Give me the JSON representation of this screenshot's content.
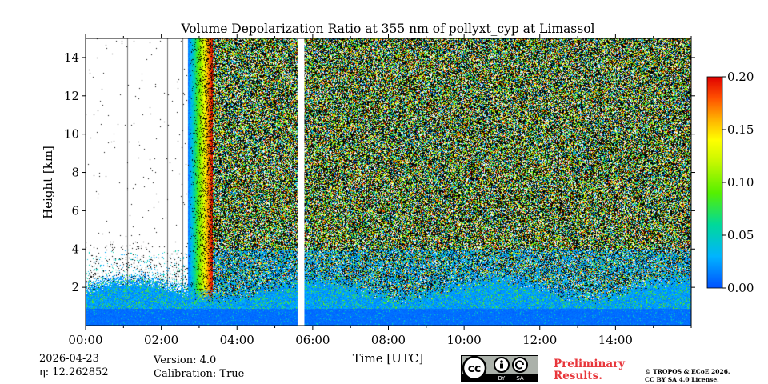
{
  "chart_data": {
    "type": "heatmap",
    "title": "Volume Depolarization Ratio at 355 nm of pollyxt_cyp at Limassol",
    "xlabel": "Time [UTC]",
    "ylabel": "Height [km]",
    "xlim": [
      0,
      16
    ],
    "ylim": [
      0,
      15
    ],
    "x_ticks": [
      0,
      2,
      4,
      6,
      8,
      10,
      12,
      14
    ],
    "x_tick_labels": [
      "00:00",
      "02:00",
      "04:00",
      "06:00",
      "08:00",
      "10:00",
      "12:00",
      "14:00"
    ],
    "y_ticks": [
      2,
      4,
      6,
      8,
      10,
      12,
      14
    ],
    "y_tick_labels": [
      "2",
      "4",
      "6",
      "8",
      "10",
      "12",
      "14"
    ],
    "colorbar": {
      "range": [
        0.0,
        0.2
      ],
      "ticks": [
        0.0,
        0.05,
        0.1,
        0.15,
        0.2
      ],
      "tick_labels": [
        "0.00",
        "0.05",
        "0.10",
        "0.15",
        "0.20"
      ],
      "colormap": [
        "#0050ff",
        "#00b4ff",
        "#00d99a",
        "#55f000",
        "#c8f800",
        "#ffff00",
        "#ffb000",
        "#ff5000",
        "#e00000"
      ]
    },
    "data_gap_hours": [
      5.6,
      5.78
    ],
    "regions": [
      {
        "name": "boundary layer",
        "time_range": [
          0,
          16
        ],
        "height_range": [
          0,
          2.5
        ],
        "value_approx": 0.02
      },
      {
        "name": "pre-dawn upper (sparse signal)",
        "time_range": [
          0,
          2.7
        ],
        "height_range": [
          3,
          15
        ],
        "value_approx": 0.0
      },
      {
        "name": "twilight transition",
        "time_range": [
          2.7,
          3.3
        ],
        "height_range": [
          3,
          15
        ],
        "value_approx": 0.2
      },
      {
        "name": "daytime noise",
        "time_range": [
          3.3,
          16
        ],
        "height_range": [
          2.5,
          15
        ],
        "value_approx": "noisy 0.00-0.20"
      }
    ]
  },
  "info": {
    "date": "2026-04-23",
    "eta_label": "η: 12.262852",
    "version": "Version: 4.0",
    "calibration": "Calibration: True"
  },
  "license": {
    "badge_cc": "cc",
    "badge_by": "BY",
    "badge_sa": "SA",
    "preliminary_line1": "Preliminary",
    "preliminary_line2": "Results.",
    "copyright_line1": "© TROPOS & ECoE 2026.",
    "copyright_line2": "CC BY SA 4.0 License."
  }
}
